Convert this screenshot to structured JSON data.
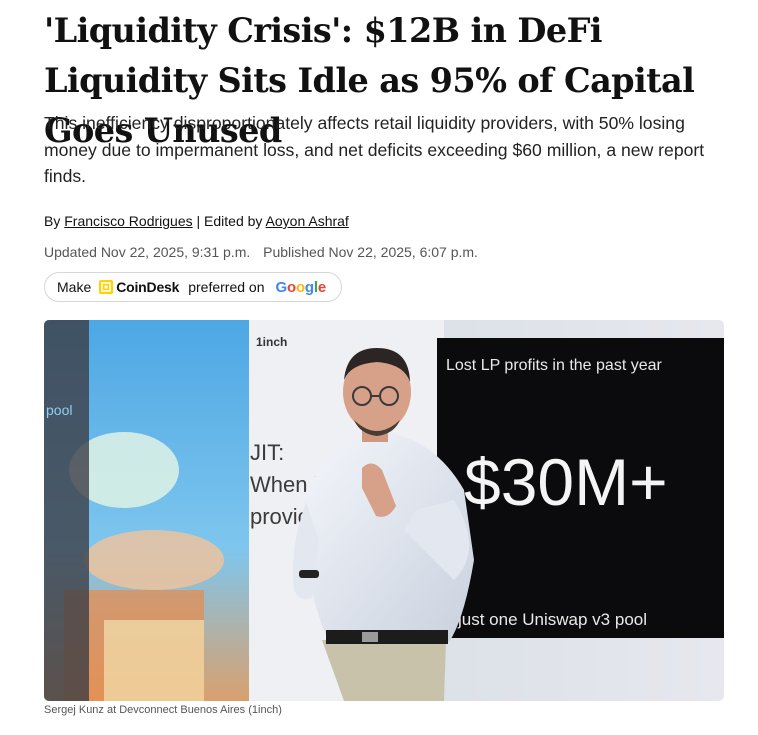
{
  "article": {
    "headline": "'Liquidity Crisis': $12B in DeFi Liquidity Sits Idle as 95% of Capital Goes Unused",
    "dek": "This inefficiency disproportionately affects retail liquidity providers, with 50% losing money due to impermanent loss, and net deficits exceeding $60 million, a new report finds.",
    "byline": {
      "prefix": "By",
      "author": "Francisco Rodrigues",
      "separator": "|",
      "editor_prefix": "Edited by",
      "editor": "Aoyon Ashraf"
    },
    "dates": {
      "updated": "Updated Nov 22, 2025, 9:31 p.m.",
      "published": "Published Nov 22, 2025, 6:07 p.m."
    },
    "preferred_source": {
      "make": "Make",
      "brand": "CoinDesk",
      "preferred_on": "preferred on",
      "google_letters": [
        "G",
        "o",
        "o",
        "g",
        "l",
        "e"
      ]
    },
    "image": {
      "slide_logo": "1inch",
      "slide_left_word": "pool",
      "slide_mid_lines": [
        "JIT:",
        "When l",
        "provic"
      ],
      "slide_right_title": "Lost LP profits in the past year",
      "slide_right_big": "$30M+",
      "slide_right_bottom": "just one Uniswap v3 pool"
    },
    "caption": "Sergej Kunz at Devconnect Buenos Aires (1inch)"
  },
  "colors": {
    "text": "#111111",
    "muted": "#555555",
    "pill_border": "#d6d6d6",
    "coindesk_yellow": "#FFD200",
    "google_blue": "#4285F4",
    "google_red": "#EA4335",
    "google_yellow": "#FBBC05",
    "google_green": "#34A853"
  }
}
